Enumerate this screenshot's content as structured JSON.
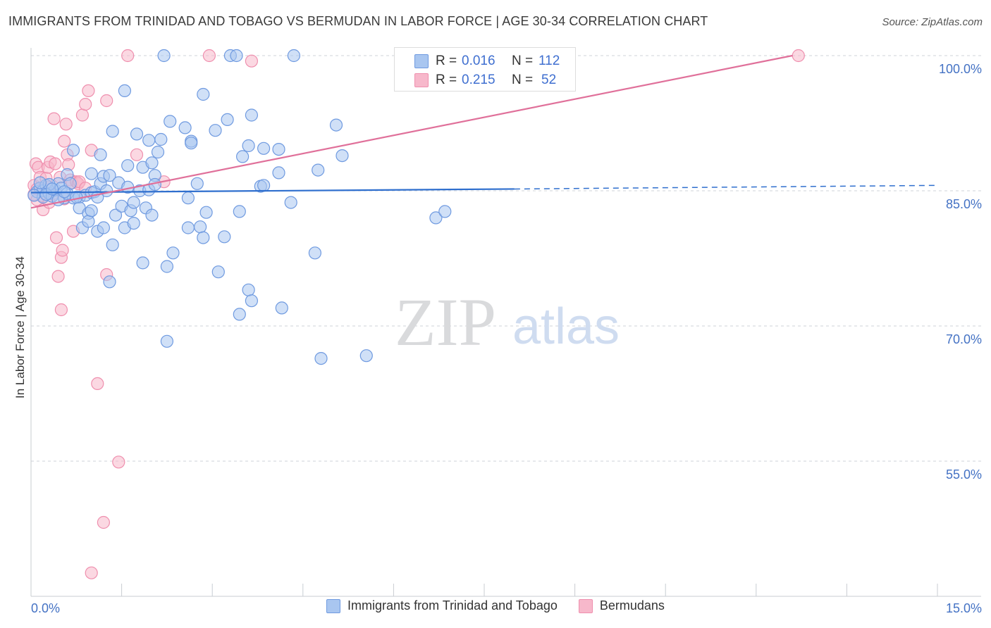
{
  "title": "IMMIGRANTS FROM TRINIDAD AND TOBAGO VS BERMUDAN IN LABOR FORCE | AGE 30-34 CORRELATION CHART",
  "source": "Source: ZipAtlas.com",
  "watermark": {
    "zip": "ZIP",
    "atlas": "atlas"
  },
  "colors": {
    "blue_fill": "#a9c6f0",
    "blue_stroke": "#6f9ae0",
    "blue_line": "#2f6fce",
    "pink_fill": "#f7b8cb",
    "pink_stroke": "#ef8fae",
    "pink_line": "#e0709a",
    "axis_text": "#4472c4",
    "grid": "#cfd3da"
  },
  "legend_stats": [
    {
      "series": "Immigrants from Trinidad and Tobago",
      "r_label": "R =",
      "r_value": "0.016",
      "n_label": "N =",
      "n_value": "112"
    },
    {
      "series": "Bermudans",
      "r_label": "R =",
      "r_value": "0.215",
      "n_label": "N =",
      "n_value": "52"
    }
  ],
  "chart_data": {
    "type": "scatter",
    "title": "IMMIGRANTS FROM TRINIDAD AND TOBAGO VS BERMUDAN IN LABOR FORCE | AGE 30-34 CORRELATION CHART",
    "xlabel": "",
    "ylabel": "In Labor Force | Age 30-34",
    "xlim": [
      0,
      15
    ],
    "ylim": [
      40,
      101.5
    ],
    "x_ticks": [
      0,
      15
    ],
    "x_tick_labels": [
      "0.0%",
      "15.0%"
    ],
    "y_ticks": [
      100,
      85,
      70,
      55
    ],
    "y_tick_labels": [
      "100.0%",
      "85.0%",
      "70.0%",
      "55.0%"
    ],
    "grid": true,
    "legend_position": "bottom",
    "series": [
      {
        "name": "Immigrants from Trinidad and Tobago",
        "color": "#a9c6f0",
        "trend": {
          "x": [
            0,
            8.0
          ],
          "y": [
            84.8,
            85.2
          ],
          "dashed_to": [
            15,
            85.6
          ]
        },
        "points": [
          [
            0.1,
            84.9
          ],
          [
            0.15,
            85.3
          ],
          [
            0.2,
            85.0
          ],
          [
            0.2,
            84.3
          ],
          [
            0.25,
            85.6
          ],
          [
            0.3,
            84.7
          ],
          [
            0.35,
            84.4
          ],
          [
            0.4,
            85.1
          ],
          [
            0.45,
            85.8
          ],
          [
            0.5,
            85.3
          ],
          [
            0.55,
            84.2
          ],
          [
            0.6,
            86.8
          ],
          [
            0.65,
            85.8
          ],
          [
            0.7,
            89.5
          ],
          [
            0.7,
            84.2
          ],
          [
            0.8,
            84.3
          ],
          [
            0.8,
            83.1
          ],
          [
            0.85,
            80.9
          ],
          [
            0.9,
            84.5
          ],
          [
            0.95,
            82.5
          ],
          [
            0.95,
            81.6
          ],
          [
            1.0,
            82.8
          ],
          [
            1.0,
            84.8
          ],
          [
            1.05,
            84.9
          ],
          [
            1.1,
            80.5
          ],
          [
            1.15,
            85.8
          ],
          [
            1.15,
            89.0
          ],
          [
            1.2,
            80.9
          ],
          [
            1.2,
            86.6
          ],
          [
            1.25,
            85.0
          ],
          [
            1.3,
            86.7
          ],
          [
            1.3,
            74.9
          ],
          [
            1.35,
            79.0
          ],
          [
            1.35,
            91.6
          ],
          [
            1.4,
            82.3
          ],
          [
            1.45,
            85.9
          ],
          [
            1.5,
            83.3
          ],
          [
            1.55,
            80.9
          ],
          [
            1.55,
            96.1
          ],
          [
            1.6,
            85.4
          ],
          [
            1.6,
            87.8
          ],
          [
            1.65,
            82.8
          ],
          [
            1.7,
            81.4
          ],
          [
            1.7,
            83.7
          ],
          [
            1.75,
            91.3
          ],
          [
            1.8,
            85.0
          ],
          [
            1.85,
            87.6
          ],
          [
            1.85,
            77.0
          ],
          [
            1.9,
            83.1
          ],
          [
            1.95,
            85.1
          ],
          [
            1.95,
            90.6
          ],
          [
            2.0,
            88.1
          ],
          [
            2.0,
            82.3
          ],
          [
            2.05,
            86.7
          ],
          [
            2.05,
            85.7
          ],
          [
            2.1,
            89.3
          ],
          [
            2.15,
            90.7
          ],
          [
            2.25,
            76.6
          ],
          [
            2.25,
            68.3
          ],
          [
            2.3,
            92.7
          ],
          [
            2.35,
            78.1
          ],
          [
            2.55,
            92.0
          ],
          [
            2.6,
            80.9
          ],
          [
            2.6,
            84.2
          ],
          [
            2.65,
            90.5
          ],
          [
            2.65,
            90.3
          ],
          [
            2.75,
            85.8
          ],
          [
            2.8,
            81.0
          ],
          [
            2.85,
            79.8
          ],
          [
            2.85,
            95.7
          ],
          [
            2.9,
            82.6
          ],
          [
            3.05,
            91.7
          ],
          [
            3.1,
            76.0
          ],
          [
            3.2,
            79.9
          ],
          [
            3.25,
            92.9
          ],
          [
            3.3,
            100.0
          ],
          [
            3.4,
            100.0
          ],
          [
            3.45,
            71.3
          ],
          [
            3.45,
            82.7
          ],
          [
            3.5,
            88.8
          ],
          [
            3.6,
            74.0
          ],
          [
            3.6,
            90.0
          ],
          [
            3.65,
            72.8
          ],
          [
            3.65,
            93.4
          ],
          [
            3.8,
            85.5
          ],
          [
            3.85,
            85.6
          ],
          [
            3.85,
            89.7
          ],
          [
            4.15,
            72.0
          ],
          [
            4.1,
            87.0
          ],
          [
            4.1,
            89.6
          ],
          [
            4.3,
            83.7
          ],
          [
            4.35,
            100.0
          ],
          [
            4.7,
            78.1
          ],
          [
            4.75,
            87.3
          ],
          [
            4.8,
            66.4
          ],
          [
            5.05,
            92.3
          ],
          [
            5.15,
            88.9
          ],
          [
            5.55,
            66.7
          ],
          [
            6.7,
            82.0
          ],
          [
            6.85,
            82.7
          ],
          [
            2.2,
            100.0
          ],
          [
            0.05,
            84.5
          ],
          [
            0.3,
            85.7
          ],
          [
            0.45,
            84.0
          ],
          [
            0.6,
            84.7
          ],
          [
            0.75,
            84.3
          ],
          [
            1.0,
            86.9
          ],
          [
            1.1,
            84.3
          ],
          [
            0.15,
            85.9
          ],
          [
            0.25,
            84.6
          ],
          [
            0.55,
            84.9
          ],
          [
            0.35,
            85.2
          ]
        ]
      },
      {
        "name": "Bermudans",
        "color": "#f7b8cb",
        "trend": {
          "x": [
            0,
            12.6
          ],
          "y": [
            83.1,
            100.0
          ]
        },
        "points": [
          [
            0.05,
            85.6
          ],
          [
            0.05,
            84.6
          ],
          [
            0.08,
            88.0
          ],
          [
            0.1,
            85.2
          ],
          [
            0.1,
            84.0
          ],
          [
            0.12,
            87.6
          ],
          [
            0.15,
            86.5
          ],
          [
            0.18,
            85.1
          ],
          [
            0.2,
            84.4
          ],
          [
            0.2,
            82.9
          ],
          [
            0.25,
            86.4
          ],
          [
            0.28,
            87.6
          ],
          [
            0.3,
            85.4
          ],
          [
            0.32,
            88.2
          ],
          [
            0.35,
            84.6
          ],
          [
            0.38,
            93.0
          ],
          [
            0.4,
            88.0
          ],
          [
            0.42,
            79.8
          ],
          [
            0.45,
            75.5
          ],
          [
            0.48,
            86.5
          ],
          [
            0.5,
            71.8
          ],
          [
            0.5,
            77.6
          ],
          [
            0.52,
            78.4
          ],
          [
            0.55,
            90.5
          ],
          [
            0.58,
            92.4
          ],
          [
            0.6,
            89.0
          ],
          [
            0.62,
            87.9
          ],
          [
            0.65,
            86.2
          ],
          [
            0.68,
            85.9
          ],
          [
            0.7,
            80.5
          ],
          [
            0.75,
            86.0
          ],
          [
            0.78,
            85.8
          ],
          [
            0.8,
            86.0
          ],
          [
            0.85,
            93.4
          ],
          [
            0.9,
            94.6
          ],
          [
            0.95,
            96.1
          ],
          [
            1.0,
            89.5
          ],
          [
            1.1,
            63.6
          ],
          [
            1.2,
            48.2
          ],
          [
            1.25,
            75.7
          ],
          [
            1.25,
            95.0
          ],
          [
            1.0,
            42.6
          ],
          [
            1.45,
            54.9
          ],
          [
            1.6,
            100.0
          ],
          [
            1.75,
            89.0
          ],
          [
            2.2,
            86.0
          ],
          [
            2.95,
            100.0
          ],
          [
            3.65,
            99.4
          ],
          [
            12.7,
            100.0
          ],
          [
            0.3,
            83.7
          ],
          [
            0.55,
            84.1
          ],
          [
            0.9,
            85.3
          ]
        ]
      }
    ]
  }
}
